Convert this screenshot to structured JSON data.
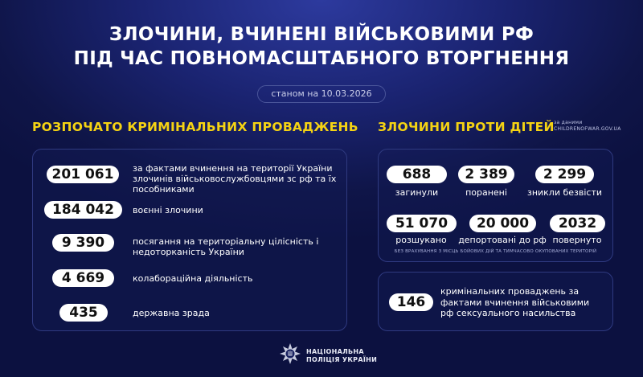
{
  "header": {
    "title_line1": "ЗЛОЧИНИ, ВЧИНЕНІ ВІЙСЬКОВИМИ РФ",
    "title_line2": "ПІД ЧАС ПОВНОМАСШТАБНОГО ВТОРГНЕННЯ",
    "date": "станом на 10.03.2026"
  },
  "criminal": {
    "heading": "РОЗПОЧАТО КРИМІНАЛЬНИХ ПРОВАДЖЕНЬ",
    "items": [
      {
        "value": "201 061",
        "label": "за фактами вчинення на території України злочинів військовослужбовцями зс рф та їх пособниками"
      },
      {
        "value": "184 042",
        "label": "воєнні злочини"
      },
      {
        "value": "9 390",
        "label": "посягання на територіальну цілісність і недоторканість України"
      },
      {
        "value": "4 669",
        "label": "колабораційна діяльність"
      },
      {
        "value": "435",
        "label": "державна зрада"
      }
    ]
  },
  "children": {
    "heading": "ЗЛОЧИНИ ПРОТИ ДІТЕЙ",
    "source_line1": "за даними",
    "source_line2": "CHILDRENOFWAR.GOV.UA",
    "stats": [
      {
        "value": "688",
        "label": "загинули"
      },
      {
        "value": "2 389",
        "label": "поранені"
      },
      {
        "value": "2 299",
        "label": "зникли безвісти"
      },
      {
        "value": "51 070",
        "label": "розшукано"
      },
      {
        "value": "20 000",
        "label": "депортовані до рф"
      },
      {
        "value": "2032",
        "label": "повернуто"
      }
    ],
    "note": "БЕЗ ВРАХУВАННЯ З МІСЦЬ БОЙОВИХ ДІЙ ТА ТИМЧАСОВО ОКУПОВАНИХ ТЕРИТОРІЙ",
    "sexual": {
      "value": "146",
      "label": "кримінальних проваджень за фактами вчинення військовими рф сексуального насильства"
    }
  },
  "footer": {
    "logo_line1": "НАЦІОНАЛЬНА",
    "logo_line2": "ПОЛІЦІЯ УКРАЇНИ"
  },
  "colors": {
    "accent": "#f5d313",
    "background": "#121a55"
  }
}
